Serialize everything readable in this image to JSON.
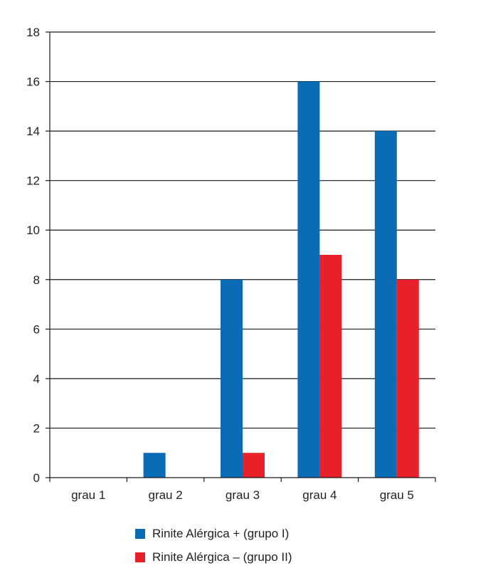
{
  "chart_data": {
    "type": "bar",
    "title": "",
    "xlabel": "",
    "ylabel": "",
    "categories": [
      "grau 1",
      "grau 2",
      "grau 3",
      "grau 4",
      "grau 5"
    ],
    "series": [
      {
        "name": "Rinite Alérgica + (grupo I)",
        "color": "#0a6cb5",
        "values": [
          0,
          1,
          8,
          16,
          14
        ]
      },
      {
        "name": "Rinite Alérgica – (grupo II)",
        "color": "#e8202a",
        "values": [
          0,
          0,
          1,
          9,
          8
        ]
      }
    ],
    "ylim": [
      0,
      18
    ],
    "yticks": [
      0,
      2,
      4,
      6,
      8,
      10,
      12,
      14,
      16,
      18
    ],
    "grid": true,
    "legend_position": "bottom"
  }
}
